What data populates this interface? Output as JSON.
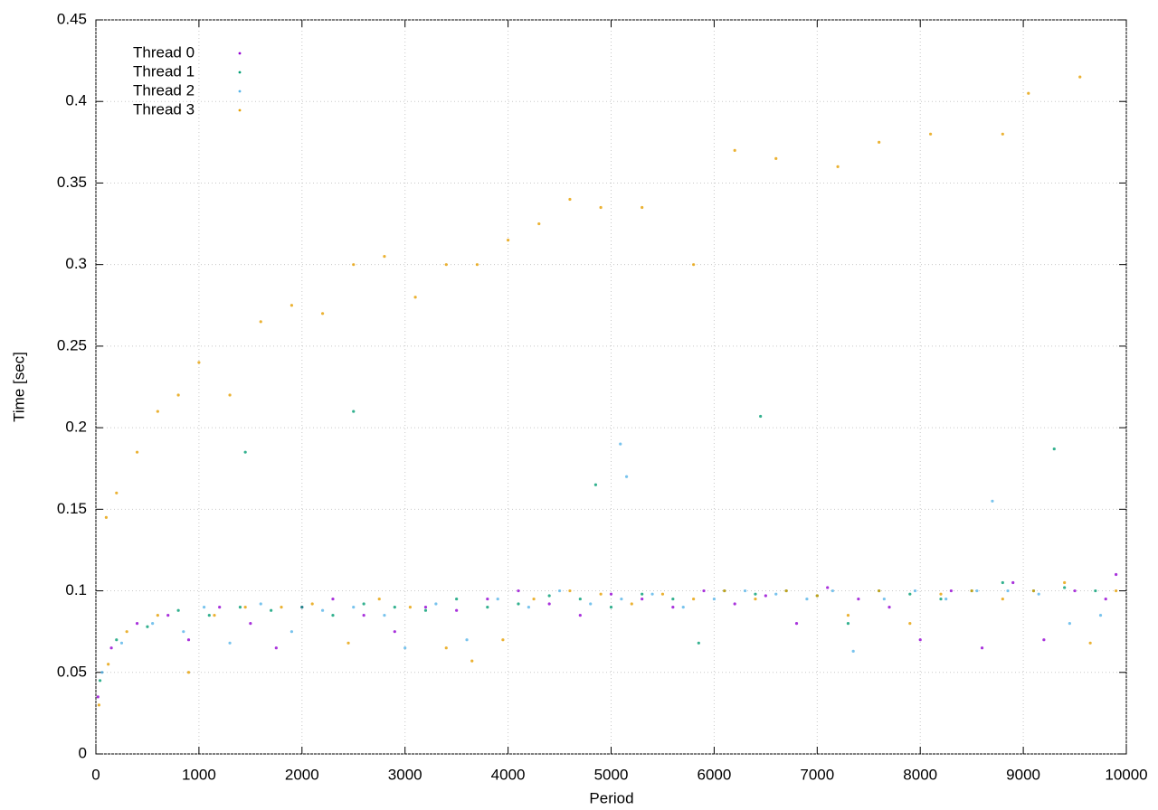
{
  "chart_data": {
    "type": "scatter",
    "x_label": "Period",
    "y_label": "Time [sec]",
    "xlim": [
      0,
      10000
    ],
    "xticks": [
      0,
      1000,
      2000,
      3000,
      4000,
      5000,
      6000,
      7000,
      8000,
      9000,
      10000
    ],
    "ylim": [
      0,
      0.45
    ],
    "yticks": [
      0,
      0.05,
      0.1,
      0.15,
      0.2,
      0.25,
      0.3,
      0.35,
      0.4,
      0.45
    ],
    "grid": true,
    "legend": "top-left",
    "series": [
      {
        "name": "Thread 0",
        "color": "#9400d3",
        "x": [
          20,
          150,
          400,
          700,
          900,
          1200,
          1500,
          1750,
          2000,
          2300,
          2600,
          2900,
          3200,
          3500,
          3800,
          4100,
          4400,
          4700,
          5000,
          5300,
          5600,
          5900,
          6200,
          6500,
          6800,
          7100,
          7400,
          7700,
          8000,
          8300,
          8600,
          8900,
          9200,
          9500,
          9800,
          9900
        ],
        "values": [
          0.035,
          0.065,
          0.08,
          0.085,
          0.07,
          0.09,
          0.08,
          0.065,
          0.09,
          0.095,
          0.085,
          0.075,
          0.09,
          0.088,
          0.095,
          0.1,
          0.092,
          0.085,
          0.098,
          0.095,
          0.09,
          0.1,
          0.092,
          0.097,
          0.08,
          0.102,
          0.095,
          0.09,
          0.07,
          0.1,
          0.065,
          0.105,
          0.07,
          0.1,
          0.095,
          0.11
        ]
      },
      {
        "name": "Thread 1",
        "color": "#009e73",
        "x": [
          40,
          200,
          500,
          800,
          1100,
          1400,
          1700,
          2000,
          2300,
          2600,
          2900,
          3200,
          3500,
          3800,
          4100,
          4400,
          4700,
          5000,
          5300,
          5600,
          5850,
          6100,
          6400,
          6700,
          7000,
          7300,
          7600,
          7900,
          8200,
          8500,
          8800,
          9100,
          9400,
          9700,
          1450,
          2500,
          4850,
          6450,
          9300
        ],
        "values": [
          0.045,
          0.07,
          0.078,
          0.088,
          0.085,
          0.09,
          0.088,
          0.09,
          0.085,
          0.092,
          0.09,
          0.088,
          0.095,
          0.09,
          0.092,
          0.097,
          0.095,
          0.09,
          0.098,
          0.095,
          0.068,
          0.1,
          0.098,
          0.1,
          0.097,
          0.08,
          0.1,
          0.098,
          0.095,
          0.1,
          0.105,
          0.1,
          0.102,
          0.1,
          0.185,
          0.21,
          0.165,
          0.207,
          0.187
        ]
      },
      {
        "name": "Thread 2",
        "color": "#56b4e9",
        "x": [
          60,
          250,
          550,
          850,
          1050,
          1300,
          1600,
          1900,
          2200,
          2500,
          2800,
          3000,
          3300,
          3600,
          3900,
          4200,
          4500,
          4800,
          5100,
          5400,
          5700,
          6000,
          6300,
          6600,
          6900,
          7150,
          7350,
          7650,
          7950,
          8250,
          8550,
          8850,
          9150,
          9450,
          9750,
          5090,
          5150,
          8700
        ],
        "values": [
          0.05,
          0.068,
          0.08,
          0.075,
          0.09,
          0.068,
          0.092,
          0.075,
          0.088,
          0.09,
          0.085,
          0.065,
          0.092,
          0.07,
          0.095,
          0.09,
          0.1,
          0.092,
          0.095,
          0.098,
          0.09,
          0.095,
          0.1,
          0.098,
          0.095,
          0.1,
          0.063,
          0.095,
          0.1,
          0.095,
          0.1,
          0.1,
          0.098,
          0.08,
          0.085,
          0.19,
          0.17,
          0.155
        ]
      },
      {
        "name": "Thread 3",
        "color": "#e69f00",
        "x": [
          30,
          120,
          300,
          600,
          900,
          1150,
          1450,
          1800,
          2100,
          2450,
          2750,
          3050,
          3400,
          3650,
          3950,
          4250,
          4600,
          4900,
          5200,
          5500,
          5800,
          6100,
          6400,
          6700,
          7000,
          7300,
          7600,
          7900,
          8200,
          8500,
          8800,
          9100,
          9400,
          9650,
          9900,
          100,
          200,
          400,
          600,
          800,
          1000,
          1300,
          1600,
          1900,
          2200,
          2500,
          2800,
          3100,
          3400,
          3700,
          4000,
          4300,
          4600,
          4900,
          5300,
          5800,
          6200,
          6600,
          7200,
          7600,
          8100,
          8800,
          9050,
          9550
        ],
        "values": [
          0.03,
          0.055,
          0.075,
          0.085,
          0.05,
          0.085,
          0.09,
          0.09,
          0.092,
          0.068,
          0.095,
          0.09,
          0.065,
          0.057,
          0.07,
          0.095,
          0.1,
          0.098,
          0.092,
          0.098,
          0.095,
          0.1,
          0.095,
          0.1,
          0.097,
          0.085,
          0.1,
          0.08,
          0.098,
          0.1,
          0.095,
          0.1,
          0.105,
          0.068,
          0.1,
          0.145,
          0.16,
          0.185,
          0.21,
          0.22,
          0.24,
          0.22,
          0.265,
          0.275,
          0.27,
          0.3,
          0.305,
          0.28,
          0.3,
          0.3,
          0.315,
          0.325,
          0.34,
          0.335,
          0.335,
          0.3,
          0.37,
          0.365,
          0.36,
          0.375,
          0.38,
          0.38,
          0.405,
          0.415
        ]
      }
    ]
  }
}
